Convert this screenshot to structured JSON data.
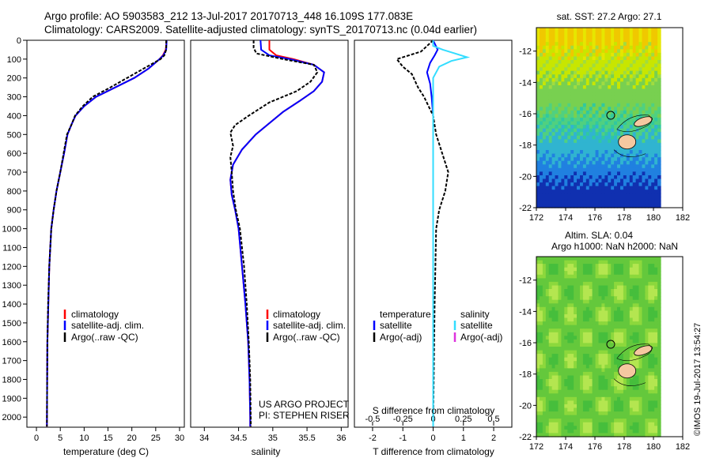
{
  "header": {
    "line1": "Argo profile: AO 5903583_212 13-Jul-2017 20170713_448 16.109S 177.083E",
    "line2": "Climatology: CARS2009. Satellite-adjusted climatology: synTS_20170713.nc (0.04d earlier)"
  },
  "credit": "©IMOS 19-Jul-2017 13:54:27",
  "colors": {
    "climatology": "#ff0000",
    "satellite_adj": "#0000ff",
    "argo": "#000000",
    "salinity_sat": "#33ddff",
    "salinity_argo": "#dd33dd",
    "land": "#f5c8a0"
  },
  "depth_ticks": [
    "0",
    "100",
    "200",
    "300",
    "400",
    "500",
    "600",
    "700",
    "800",
    "900",
    "1000",
    "1100",
    "1200",
    "1300",
    "1400",
    "1500",
    "1600",
    "1700",
    "1800",
    "1900",
    "2000"
  ],
  "panels": {
    "temperature": {
      "xlabel": "temperature (deg C)",
      "ticks": [
        "0",
        "5",
        "10",
        "15",
        "20",
        "25",
        "30"
      ],
      "legend": [
        "climatology",
        "satellite-adj. clim.",
        "Argo(..raw -QC)"
      ]
    },
    "salinity": {
      "xlabel": "salinity",
      "ticks": [
        "34",
        "34.5",
        "35",
        "35.5",
        "36"
      ],
      "legend": [
        "climatology",
        "satellite-adj. clim.",
        "Argo(..raw -QC)"
      ],
      "note1": "US ARGO PROJECT",
      "note2": "PI: STEPHEN RISER"
    },
    "difference": {
      "xlabel": "T difference from climatology",
      "top_label": "S difference from climatology",
      "t_ticks": [
        "-2",
        "-1",
        "0",
        "1",
        "2"
      ],
      "s_ticks": [
        "-0.5",
        "-0.25",
        "0",
        "0.25",
        "0.5"
      ],
      "legend_temp_title": "temperature",
      "legend_temp": [
        "satellite",
        "Argo(-adj)"
      ],
      "legend_sal_title": "salinity",
      "legend_sal": [
        "satellite",
        "Argo(-adj)"
      ]
    }
  },
  "maps": {
    "sst": {
      "title": "sat. SST: 27.2 Argo: 27.1"
    },
    "sla": {
      "title1": "Altim. SLA: 0.04",
      "title2": "Argo h1000: NaN h2000: NaN"
    },
    "lat_ticks": [
      "-12",
      "-14",
      "-16",
      "-18",
      "-20",
      "-22"
    ],
    "lon_ticks": [
      "172",
      "174",
      "176",
      "178",
      "180",
      "182"
    ]
  },
  "chart_data": [
    {
      "type": "line",
      "title": "",
      "xlabel": "temperature (deg C)",
      "ylabel": "",
      "xlim": [
        -2,
        31
      ],
      "ylim": [
        2050,
        0
      ],
      "y_inverted": true,
      "series": [
        {
          "name": "climatology",
          "x": [
            27.3,
            27.1,
            26.5,
            25.8,
            23.5,
            20.5,
            16.5,
            12.5,
            10.0,
            8.2,
            7.3,
            6.5,
            5.8,
            5.0,
            4.2,
            3.6,
            3.1,
            2.7,
            2.5,
            2.3,
            2.25,
            2.2
          ],
          "y": [
            0,
            50,
            80,
            100,
            150,
            200,
            250,
            300,
            350,
            400,
            450,
            500,
            600,
            700,
            800,
            900,
            1000,
            1200,
            1400,
            1600,
            1800,
            2050
          ]
        },
        {
          "name": "satellite-adj. clim.",
          "x": [
            27.3,
            27.2,
            26.6,
            25.8,
            23.5,
            20.5,
            16.5,
            12.5,
            10.0,
            8.2,
            7.3,
            6.5,
            5.8,
            5.0,
            4.2,
            3.6,
            3.1,
            2.7,
            2.5,
            2.3,
            2.25,
            2.2
          ],
          "y": [
            0,
            50,
            80,
            100,
            150,
            200,
            250,
            300,
            350,
            400,
            450,
            500,
            600,
            700,
            800,
            900,
            1000,
            1200,
            1400,
            1600,
            1800,
            2050
          ]
        },
        {
          "name": "Argo(..raw -QC)",
          "x": [
            27.2,
            27.2,
            26.8,
            26.0,
            22.5,
            19.0,
            15.5,
            11.8,
            9.7,
            8.1,
            7.3,
            6.4,
            5.7,
            5.0,
            4.2,
            3.6,
            3.1,
            2.7,
            2.45,
            2.3,
            2.25,
            2.2
          ],
          "y": [
            0,
            50,
            80,
            100,
            150,
            200,
            250,
            300,
            350,
            400,
            450,
            500,
            600,
            700,
            800,
            900,
            1000,
            1200,
            1400,
            1600,
            1800,
            2050
          ]
        }
      ]
    },
    {
      "type": "line",
      "title": "",
      "xlabel": "salinity",
      "ylabel": "",
      "xlim": [
        33.8,
        36.1
      ],
      "ylim": [
        2050,
        0
      ],
      "y_inverted": true,
      "series": [
        {
          "name": "climatology",
          "x": [
            34.95,
            34.95,
            35.05,
            35.3,
            35.6,
            35.75,
            35.72,
            35.6,
            35.4,
            35.15,
            34.95,
            34.75,
            34.55,
            34.42,
            34.38,
            34.4,
            34.45,
            34.5,
            34.55,
            34.6,
            34.64,
            34.66,
            34.67,
            34.67
          ],
          "y": [
            0,
            50,
            80,
            100,
            130,
            170,
            220,
            270,
            320,
            380,
            440,
            500,
            580,
            660,
            740,
            820,
            900,
            1000,
            1200,
            1400,
            1600,
            1800,
            2000,
            2050
          ]
        },
        {
          "name": "satellite-adj. clim.",
          "x": [
            34.82,
            34.83,
            34.95,
            35.25,
            35.6,
            35.75,
            35.72,
            35.6,
            35.4,
            35.15,
            34.95,
            34.75,
            34.55,
            34.42,
            34.38,
            34.4,
            34.45,
            34.5,
            34.55,
            34.6,
            34.64,
            34.66,
            34.67,
            34.67
          ],
          "y": [
            0,
            50,
            80,
            100,
            130,
            170,
            220,
            270,
            320,
            380,
            440,
            500,
            580,
            660,
            740,
            820,
            900,
            1000,
            1200,
            1400,
            1600,
            1800,
            2000,
            2050
          ]
        },
        {
          "name": "Argo(..raw -QC)",
          "x": [
            34.72,
            34.72,
            34.76,
            35.15,
            35.6,
            35.65,
            35.55,
            35.35,
            34.95,
            34.65,
            34.45,
            34.38,
            34.42,
            34.38,
            34.4,
            34.42,
            34.46,
            34.52,
            34.58,
            34.62,
            34.65,
            34.67,
            34.68
          ],
          "y": [
            0,
            40,
            70,
            100,
            130,
            170,
            220,
            270,
            330,
            400,
            450,
            490,
            560,
            620,
            700,
            800,
            900,
            1000,
            1200,
            1400,
            1600,
            1800,
            2050
          ]
        }
      ]
    },
    {
      "type": "line",
      "title": "",
      "xlabel": "T difference from climatology",
      "ylabel": "",
      "xlim": [
        -2.6,
        2.6
      ],
      "x2label": "S difference from climatology",
      "x2lim": [
        -0.65,
        0.65
      ],
      "ylim": [
        2050,
        0
      ],
      "y_inverted": true,
      "series": [
        {
          "name": "temperature satellite",
          "x": [
            0.0,
            0.15,
            0.05,
            -0.1,
            -0.2,
            -0.1,
            -0.05,
            0.0,
            0.0,
            0.0,
            0.0
          ],
          "y": [
            0,
            50,
            80,
            120,
            170,
            230,
            300,
            400,
            600,
            1000,
            2050
          ]
        },
        {
          "name": "temperature Argo(-adj)",
          "x": [
            0.0,
            -0.4,
            -1.2,
            -1.0,
            -0.7,
            -0.5,
            -0.3,
            0.0,
            0.1,
            0.3,
            0.5,
            0.4,
            0.2,
            0.1,
            0.05,
            0.0
          ],
          "y": [
            0,
            60,
            100,
            140,
            180,
            250,
            300,
            400,
            500,
            600,
            700,
            800,
            900,
            1000,
            1400,
            2050
          ]
        },
        {
          "name": "salinity satellite",
          "x": [
            0.0,
            0.0,
            0.08,
            0.18,
            0.28,
            0.15,
            0.05,
            0.0,
            0.0,
            0.0,
            0.0,
            0.0
          ],
          "y": [
            0,
            30,
            50,
            70,
            90,
            110,
            140,
            200,
            400,
            700,
            1200,
            2050
          ]
        },
        {
          "name": "salinity Argo(-adj)",
          "x": [],
          "y": []
        }
      ]
    }
  ]
}
